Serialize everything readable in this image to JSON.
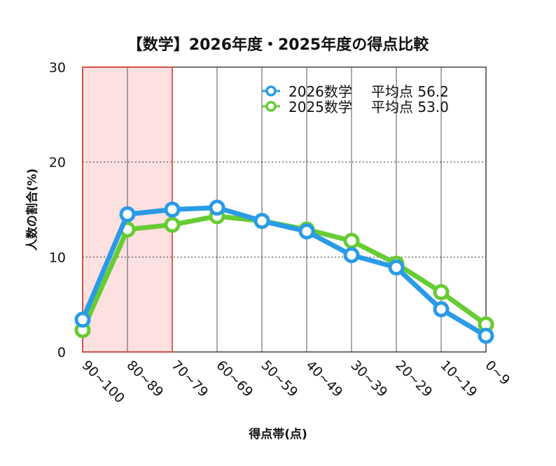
{
  "chart_data": {
    "type": "line",
    "title": "【数学】2026年度・2025年度の得点比較",
    "xlabel": "得点帯(点)",
    "ylabel": "人数の割合(%)",
    "categories": [
      "90~100",
      "80~89",
      "70~79",
      "60~69",
      "50~59",
      "40~49",
      "30~39",
      "20~29",
      "10~19",
      "0~9"
    ],
    "ylim": [
      0,
      30
    ],
    "yticks": [
      0,
      10,
      20,
      30
    ],
    "highlight_range": [
      "90~100",
      "70~79"
    ],
    "series": [
      {
        "name": "2026数学",
        "avg_label": "平均点 56.2",
        "color": "#2a9be6",
        "values": [
          3.4,
          14.5,
          15.0,
          15.2,
          13.8,
          12.7,
          10.2,
          8.9,
          4.5,
          1.7
        ]
      },
      {
        "name": "2025数学",
        "avg_label": "平均点 53.0",
        "color": "#66cc33",
        "values": [
          2.3,
          12.9,
          13.4,
          14.3,
          13.8,
          12.9,
          11.7,
          9.3,
          6.3,
          2.9
        ]
      }
    ],
    "grid": true,
    "legend_position": "top-right",
    "highlight_color": "#fde0e0",
    "highlight_border": "#e04a3a"
  }
}
